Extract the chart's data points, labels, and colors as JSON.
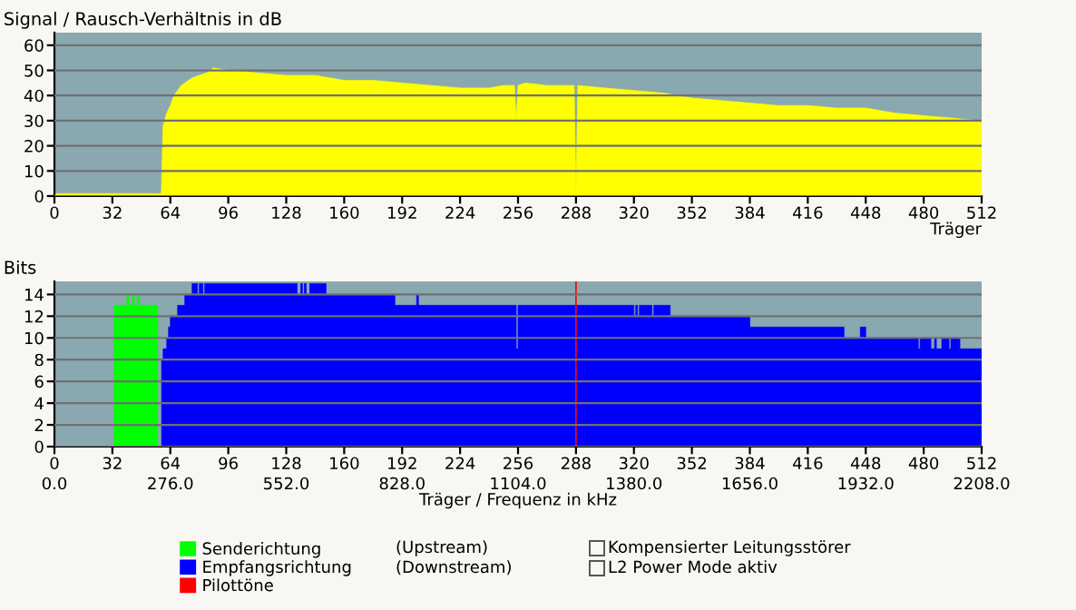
{
  "chart_data": [
    {
      "type": "area",
      "title": "Signal / Rausch-Verhältnis in dB",
      "xlabel": "Träger",
      "x": [
        0,
        59,
        60,
        62,
        64,
        66,
        70,
        76,
        84,
        88,
        96,
        112,
        128,
        144,
        160,
        176,
        192,
        208,
        224,
        240,
        248,
        254,
        255,
        256,
        260,
        272,
        287,
        288,
        289,
        304,
        320,
        336,
        352,
        368,
        384,
        400,
        416,
        432,
        448,
        464,
        480,
        496,
        511,
        512
      ],
      "series": [
        {
          "color": "#ffff00",
          "values": [
            1,
            1,
            28,
            33,
            36,
            40,
            44,
            47,
            49,
            51,
            50,
            49,
            48,
            48,
            46,
            46,
            45,
            44,
            43,
            43,
            44,
            44,
            30,
            44,
            45,
            44,
            44,
            0,
            44,
            43,
            42,
            41,
            39,
            38,
            37,
            36,
            36,
            35,
            35,
            33,
            32,
            31,
            30,
            29
          ]
        }
      ],
      "xlim": [
        0,
        512
      ],
      "xticks": [
        0,
        32,
        64,
        96,
        128,
        160,
        192,
        224,
        256,
        288,
        320,
        352,
        384,
        416,
        448,
        480,
        512
      ],
      "ylim": [
        0,
        65
      ],
      "yticks": [
        0,
        10,
        20,
        30,
        40,
        50,
        60
      ],
      "grid": "y",
      "bands": [
        {
          "axis": "y",
          "from": 0,
          "to": 65,
          "color": "#8aa8b0"
        }
      ]
    },
    {
      "type": "area",
      "ylabel": "Bits",
      "xlabel": "Träger / Frequenz in kHz",
      "series": [
        {
          "name": "Senderichtung",
          "color": "#00ff00",
          "x": [
            0,
            33,
            33,
            40,
            40,
            41,
            41,
            43,
            43,
            44,
            44,
            46,
            46,
            47,
            47,
            57,
            57,
            58
          ],
          "values": [
            0,
            0,
            13,
            13,
            14,
            14,
            13,
            13,
            14,
            14,
            13,
            13,
            14,
            14,
            13,
            13,
            0,
            0
          ]
        },
        {
          "name": "Empfangsrichtung",
          "color": "#0000ff",
          "x": [
            59,
            60,
            60,
            62,
            62,
            63,
            63,
            64,
            64,
            68,
            68,
            72,
            72,
            76,
            76,
            79,
            79,
            80,
            80,
            82,
            82,
            83,
            83,
            134,
            134,
            136,
            136,
            137,
            137,
            138,
            138,
            139,
            139,
            141,
            141,
            150,
            150,
            188,
            188,
            200,
            200,
            201,
            201,
            255,
            255,
            256,
            256,
            320,
            320,
            321,
            321,
            322,
            322,
            323,
            323,
            330,
            330,
            331,
            331,
            340,
            340,
            384,
            384,
            436,
            436,
            445,
            445,
            448,
            448,
            477,
            477,
            478,
            478,
            484,
            484,
            486,
            486,
            487,
            487,
            490,
            490,
            494,
            494,
            495,
            495,
            500,
            500,
            512
          ],
          "values": [
            8,
            8,
            9,
            9,
            10,
            10,
            11,
            11,
            12,
            12,
            13,
            13,
            14,
            14,
            15,
            15,
            14,
            14,
            15,
            15,
            14,
            14,
            15,
            15,
            14,
            14,
            15,
            15,
            14,
            14,
            15,
            15,
            14,
            14,
            15,
            15,
            14,
            14,
            13,
            13,
            14,
            14,
            13,
            13,
            9,
            9,
            13,
            13,
            12,
            12,
            13,
            13,
            12,
            12,
            13,
            13,
            12,
            12,
            13,
            13,
            12,
            12,
            11,
            11,
            10,
            10,
            11,
            11,
            10,
            10,
            9,
            9,
            10,
            10,
            9,
            9,
            10,
            10,
            9,
            9,
            10,
            10,
            9,
            9,
            10,
            10,
            9,
            9
          ]
        }
      ],
      "xlim": [
        0,
        512
      ],
      "xticks": [
        0,
        32,
        64,
        96,
        128,
        160,
        192,
        224,
        256,
        288,
        320,
        352,
        384,
        416,
        448,
        480,
        512
      ],
      "x2lim": [
        0,
        2208
      ],
      "x2ticks": [
        {
          "value": 0,
          "label": "0.0"
        },
        {
          "value": 276,
          "label": "276.0"
        },
        {
          "value": 552,
          "label": "552.0"
        },
        {
          "value": 828,
          "label": "828.0"
        },
        {
          "value": 1104,
          "label": "1104.0"
        },
        {
          "value": 1380,
          "label": "1380.0"
        },
        {
          "value": 1656,
          "label": "1656.0"
        },
        {
          "value": 1932,
          "label": "1932.0"
        },
        {
          "value": 2208,
          "label": "2208.0"
        }
      ],
      "ylim": [
        0,
        15.2
      ],
      "yticks": [
        0,
        2,
        4,
        6,
        8,
        10,
        12,
        14
      ],
      "grid": "y",
      "bands": [
        {
          "axis": "y",
          "from": 0,
          "to": 15.2,
          "color": "#8aa8b0"
        }
      ],
      "ref_lines": [
        {
          "axis": "x",
          "value": 288,
          "label": "Pilottöne",
          "color": "#ff0000"
        }
      ],
      "legend": "bottom",
      "annotations": [
        "(Upstream)",
        "(Downstream)",
        "Kompensierter Leitungsstörer",
        "L2 Power Mode aktiv"
      ]
    }
  ]
}
